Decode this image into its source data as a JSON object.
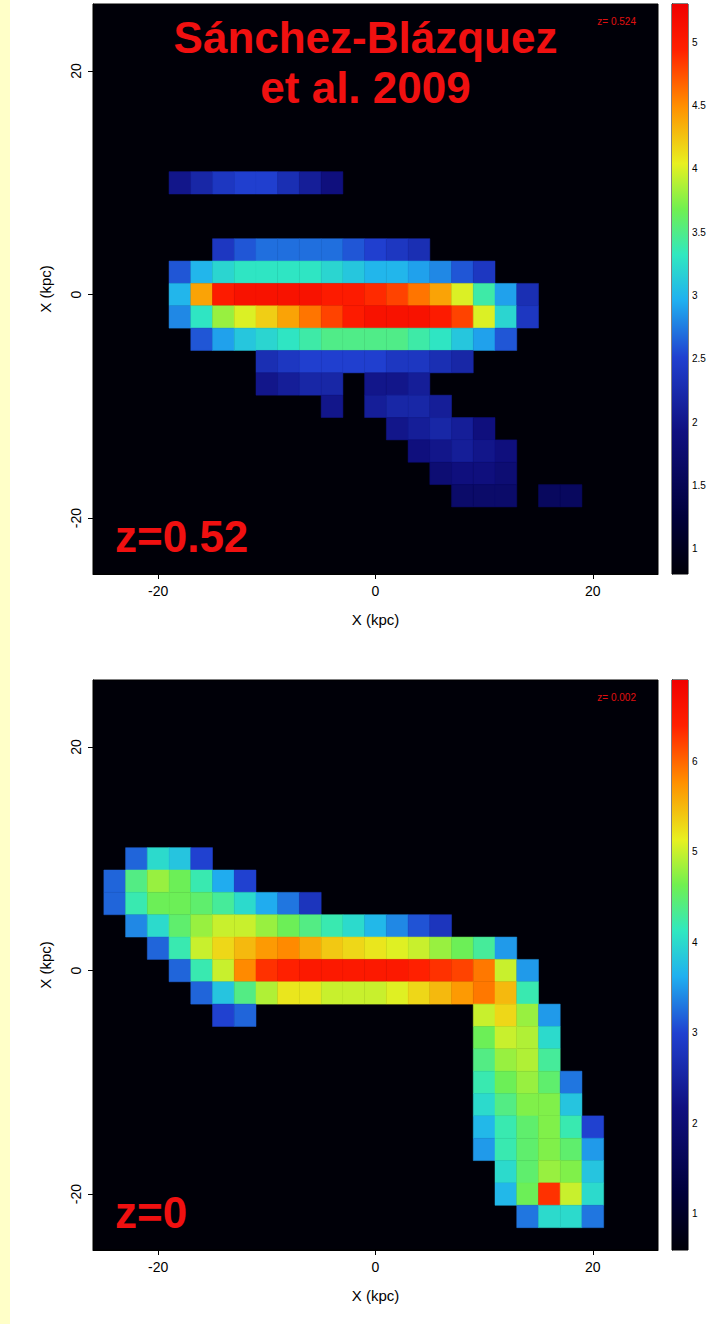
{
  "chart_data": [
    {
      "type": "heatmap",
      "xlabel": "X (kpc)",
      "ylabel": "X (kpc)",
      "xlim": [
        -26,
        26
      ],
      "ylim": [
        -25,
        26
      ],
      "xticks": [
        -20,
        0,
        20
      ],
      "yticks": [
        -20,
        0,
        20
      ],
      "grid": false,
      "cell_size": 2,
      "colorbar_range": [
        0.8,
        5.3
      ],
      "colorbar_ticks": [
        1,
        1.5,
        2,
        2.5,
        3,
        3.5,
        4,
        4.5,
        5
      ],
      "annotations": {
        "citation": "Sánchez-Blázquez\net al. 2009",
        "epoch": "z=0.52",
        "snapshot": "z= 0.524"
      },
      "cells": [
        [
          -18,
          10,
          2.0
        ],
        [
          -16,
          10,
          2.2
        ],
        [
          -14,
          10,
          2.4
        ],
        [
          -12,
          10,
          2.5
        ],
        [
          -10,
          10,
          2.5
        ],
        [
          -8,
          10,
          2.3
        ],
        [
          -6,
          10,
          2.1
        ],
        [
          -4,
          10,
          1.9
        ],
        [
          -14,
          4,
          2.4
        ],
        [
          -12,
          4,
          2.6
        ],
        [
          -10,
          4,
          2.7
        ],
        [
          -8,
          4,
          2.7
        ],
        [
          -6,
          4,
          2.7
        ],
        [
          -4,
          4,
          2.7
        ],
        [
          -2,
          4,
          2.6
        ],
        [
          0,
          4,
          2.5
        ],
        [
          2,
          4,
          2.4
        ],
        [
          4,
          4,
          2.3
        ],
        [
          -18,
          2,
          2.6
        ],
        [
          -16,
          2,
          3.0
        ],
        [
          -14,
          2,
          3.2
        ],
        [
          -12,
          2,
          3.3
        ],
        [
          -10,
          2,
          3.3
        ],
        [
          -8,
          2,
          3.3
        ],
        [
          -6,
          2,
          3.3
        ],
        [
          -4,
          2,
          3.2
        ],
        [
          -2,
          2,
          3.1
        ],
        [
          0,
          2,
          3.0
        ],
        [
          2,
          2,
          3.0
        ],
        [
          4,
          2,
          2.9
        ],
        [
          6,
          2,
          2.8
        ],
        [
          8,
          2,
          2.6
        ],
        [
          10,
          2,
          2.4
        ],
        [
          -18,
          0,
          3.0
        ],
        [
          -16,
          0,
          4.4
        ],
        [
          -14,
          0,
          5.0
        ],
        [
          -12,
          0,
          5.1
        ],
        [
          -10,
          0,
          5.1
        ],
        [
          -8,
          0,
          5.1
        ],
        [
          -6,
          0,
          5.1
        ],
        [
          -4,
          0,
          5.0
        ],
        [
          -2,
          0,
          5.0
        ],
        [
          0,
          0,
          4.9
        ],
        [
          2,
          0,
          4.8
        ],
        [
          4,
          0,
          4.6
        ],
        [
          6,
          0,
          4.4
        ],
        [
          8,
          0,
          4.0
        ],
        [
          10,
          0,
          3.4
        ],
        [
          12,
          0,
          2.9
        ],
        [
          14,
          0,
          2.3
        ],
        [
          -18,
          -2,
          2.8
        ],
        [
          -16,
          -2,
          3.3
        ],
        [
          -14,
          -2,
          3.8
        ],
        [
          -12,
          -2,
          4.0
        ],
        [
          -10,
          -2,
          4.2
        ],
        [
          -8,
          -2,
          4.4
        ],
        [
          -6,
          -2,
          4.6
        ],
        [
          -4,
          -2,
          4.8
        ],
        [
          -2,
          -2,
          5.0
        ],
        [
          0,
          -2,
          5.1
        ],
        [
          2,
          -2,
          5.1
        ],
        [
          4,
          -2,
          5.1
        ],
        [
          6,
          -2,
          5.0
        ],
        [
          8,
          -2,
          4.8
        ],
        [
          10,
          -2,
          4.0
        ],
        [
          12,
          -2,
          3.2
        ],
        [
          14,
          -2,
          2.4
        ],
        [
          -16,
          -4,
          2.6
        ],
        [
          -14,
          -4,
          2.9
        ],
        [
          -12,
          -4,
          3.1
        ],
        [
          -10,
          -4,
          3.2
        ],
        [
          -8,
          -4,
          3.3
        ],
        [
          -6,
          -4,
          3.4
        ],
        [
          -4,
          -4,
          3.5
        ],
        [
          -2,
          -4,
          3.5
        ],
        [
          0,
          -4,
          3.5
        ],
        [
          2,
          -4,
          3.5
        ],
        [
          4,
          -4,
          3.4
        ],
        [
          6,
          -4,
          3.3
        ],
        [
          8,
          -4,
          3.1
        ],
        [
          10,
          -4,
          2.9
        ],
        [
          12,
          -4,
          2.6
        ],
        [
          -10,
          -6,
          2.3
        ],
        [
          -8,
          -6,
          2.4
        ],
        [
          -6,
          -6,
          2.5
        ],
        [
          -4,
          -6,
          2.5
        ],
        [
          -2,
          -6,
          2.5
        ],
        [
          0,
          -6,
          2.5
        ],
        [
          2,
          -6,
          2.4
        ],
        [
          4,
          -6,
          2.4
        ],
        [
          6,
          -6,
          2.3
        ],
        [
          8,
          -6,
          2.2
        ],
        [
          -10,
          -8,
          2.0
        ],
        [
          -8,
          -8,
          2.1
        ],
        [
          -6,
          -8,
          2.2
        ],
        [
          -4,
          -8,
          2.2
        ],
        [
          0,
          -8,
          2.0
        ],
        [
          2,
          -8,
          2.0
        ],
        [
          4,
          -8,
          2.1
        ],
        [
          -4,
          -10,
          2.0
        ],
        [
          0,
          -10,
          2.1
        ],
        [
          2,
          -10,
          2.2
        ],
        [
          4,
          -10,
          2.2
        ],
        [
          6,
          -10,
          2.1
        ],
        [
          2,
          -12,
          2.0
        ],
        [
          4,
          -12,
          2.1
        ],
        [
          6,
          -12,
          2.2
        ],
        [
          8,
          -12,
          2.1
        ],
        [
          10,
          -12,
          1.9
        ],
        [
          4,
          -14,
          1.9
        ],
        [
          6,
          -14,
          2.0
        ],
        [
          8,
          -14,
          2.1
        ],
        [
          10,
          -14,
          2.0
        ],
        [
          12,
          -14,
          1.9
        ],
        [
          6,
          -16,
          1.8
        ],
        [
          8,
          -16,
          1.9
        ],
        [
          10,
          -16,
          1.9
        ],
        [
          12,
          -16,
          1.8
        ],
        [
          8,
          -18,
          1.7
        ],
        [
          10,
          -18,
          1.7
        ],
        [
          12,
          -18,
          1.7
        ],
        [
          16,
          -18,
          1.6
        ],
        [
          18,
          -18,
          1.6
        ]
      ]
    },
    {
      "type": "heatmap",
      "xlabel": "X (kpc)",
      "ylabel": "X (kpc)",
      "xlim": [
        -26,
        26
      ],
      "ylim": [
        -25,
        26
      ],
      "xticks": [
        -20,
        0,
        20
      ],
      "yticks": [
        -20,
        0,
        20
      ],
      "grid": false,
      "cell_size": 2,
      "colorbar_range": [
        0.6,
        6.9
      ],
      "colorbar_ticks": [
        1,
        2,
        3,
        4,
        5,
        6
      ],
      "annotations": {
        "epoch": "z=0",
        "snapshot": "z= 0.002"
      },
      "cells": [
        [
          -22,
          10,
          3.2
        ],
        [
          -20,
          10,
          4.0
        ],
        [
          -18,
          10,
          3.8
        ],
        [
          -16,
          10,
          3.0
        ],
        [
          -24,
          8,
          3.2
        ],
        [
          -22,
          8,
          4.4
        ],
        [
          -20,
          8,
          4.8
        ],
        [
          -18,
          8,
          4.6
        ],
        [
          -16,
          8,
          4.2
        ],
        [
          -14,
          8,
          3.6
        ],
        [
          -12,
          8,
          3.0
        ],
        [
          -24,
          6,
          3.2
        ],
        [
          -22,
          6,
          4.2
        ],
        [
          -20,
          6,
          4.6
        ],
        [
          -18,
          6,
          4.6
        ],
        [
          -16,
          6,
          4.5
        ],
        [
          -14,
          6,
          4.3
        ],
        [
          -12,
          6,
          4.0
        ],
        [
          -10,
          6,
          3.6
        ],
        [
          -8,
          6,
          3.3
        ],
        [
          -6,
          6,
          2.8
        ],
        [
          -22,
          4,
          3.4
        ],
        [
          -20,
          4,
          4.0
        ],
        [
          -18,
          4,
          4.5
        ],
        [
          -16,
          4,
          4.8
        ],
        [
          -14,
          4,
          5.0
        ],
        [
          -12,
          4,
          5.0
        ],
        [
          -10,
          4,
          4.8
        ],
        [
          -8,
          4,
          4.6
        ],
        [
          -6,
          4,
          4.4
        ],
        [
          -4,
          4,
          4.2
        ],
        [
          -2,
          4,
          4.0
        ],
        [
          0,
          4,
          3.7
        ],
        [
          2,
          4,
          3.4
        ],
        [
          4,
          4,
          3.1
        ],
        [
          6,
          4,
          2.8
        ],
        [
          -20,
          2,
          3.2
        ],
        [
          -18,
          2,
          4.2
        ],
        [
          -16,
          2,
          5.0
        ],
        [
          -14,
          2,
          5.3
        ],
        [
          -12,
          2,
          5.5
        ],
        [
          -10,
          2,
          5.7
        ],
        [
          -8,
          2,
          5.8
        ],
        [
          -6,
          2,
          5.6
        ],
        [
          -4,
          2,
          5.4
        ],
        [
          -2,
          2,
          5.3
        ],
        [
          0,
          2,
          5.2
        ],
        [
          2,
          2,
          5.1
        ],
        [
          4,
          2,
          5.0
        ],
        [
          6,
          2,
          4.8
        ],
        [
          8,
          2,
          4.6
        ],
        [
          10,
          2,
          4.3
        ],
        [
          12,
          2,
          3.5
        ],
        [
          -18,
          0,
          3.2
        ],
        [
          -16,
          0,
          4.2
        ],
        [
          -14,
          0,
          5.0
        ],
        [
          -12,
          0,
          5.8
        ],
        [
          -10,
          0,
          6.3
        ],
        [
          -8,
          0,
          6.4
        ],
        [
          -6,
          0,
          6.5
        ],
        [
          -4,
          0,
          6.5
        ],
        [
          -2,
          0,
          6.5
        ],
        [
          0,
          0,
          6.5
        ],
        [
          2,
          0,
          6.5
        ],
        [
          4,
          0,
          6.4
        ],
        [
          6,
          0,
          6.3
        ],
        [
          8,
          0,
          6.2
        ],
        [
          10,
          0,
          5.9
        ],
        [
          12,
          0,
          5.0
        ],
        [
          14,
          0,
          3.5
        ],
        [
          -16,
          -2,
          3.2
        ],
        [
          -14,
          -2,
          3.8
        ],
        [
          -12,
          -2,
          4.4
        ],
        [
          -10,
          -2,
          4.9
        ],
        [
          -8,
          -2,
          5.2
        ],
        [
          -6,
          -2,
          5.2
        ],
        [
          -4,
          -2,
          5.0
        ],
        [
          -2,
          -2,
          5.0
        ],
        [
          0,
          -2,
          5.0
        ],
        [
          2,
          -2,
          5.1
        ],
        [
          4,
          -2,
          5.3
        ],
        [
          6,
          -2,
          5.5
        ],
        [
          8,
          -2,
          5.7
        ],
        [
          10,
          -2,
          5.9
        ],
        [
          12,
          -2,
          5.5
        ],
        [
          14,
          -2,
          4.2
        ],
        [
          -14,
          -4,
          3.0
        ],
        [
          -12,
          -4,
          3.2
        ],
        [
          10,
          -4,
          5.0
        ],
        [
          12,
          -4,
          5.3
        ],
        [
          14,
          -4,
          4.8
        ],
        [
          16,
          -4,
          3.5
        ],
        [
          10,
          -6,
          4.6
        ],
        [
          12,
          -6,
          5.0
        ],
        [
          14,
          -6,
          4.9
        ],
        [
          16,
          -6,
          4.0
        ],
        [
          10,
          -8,
          4.4
        ],
        [
          12,
          -8,
          4.8
        ],
        [
          14,
          -8,
          4.9
        ],
        [
          16,
          -8,
          4.3
        ],
        [
          10,
          -10,
          4.2
        ],
        [
          12,
          -10,
          4.6
        ],
        [
          14,
          -10,
          4.8
        ],
        [
          16,
          -10,
          4.5
        ],
        [
          18,
          -10,
          3.3
        ],
        [
          10,
          -12,
          4.0
        ],
        [
          12,
          -12,
          4.4
        ],
        [
          14,
          -12,
          4.7
        ],
        [
          16,
          -12,
          4.7
        ],
        [
          18,
          -12,
          3.8
        ],
        [
          10,
          -14,
          3.7
        ],
        [
          12,
          -14,
          4.2
        ],
        [
          14,
          -14,
          4.5
        ],
        [
          16,
          -14,
          4.7
        ],
        [
          18,
          -14,
          4.2
        ],
        [
          20,
          -14,
          3.0
        ],
        [
          10,
          -16,
          3.5
        ],
        [
          12,
          -16,
          4.2
        ],
        [
          14,
          -16,
          4.5
        ],
        [
          16,
          -16,
          4.7
        ],
        [
          18,
          -16,
          4.5
        ],
        [
          20,
          -16,
          3.5
        ],
        [
          12,
          -18,
          4.0
        ],
        [
          14,
          -18,
          4.5
        ],
        [
          16,
          -18,
          4.8
        ],
        [
          18,
          -18,
          4.7
        ],
        [
          20,
          -18,
          3.8
        ],
        [
          12,
          -20,
          3.7
        ],
        [
          14,
          -20,
          4.6
        ],
        [
          16,
          -20,
          6.3
        ],
        [
          18,
          -20,
          5.0
        ],
        [
          20,
          -20,
          4.0
        ],
        [
          14,
          -22,
          3.3
        ],
        [
          16,
          -22,
          4.0
        ],
        [
          18,
          -22,
          4.0
        ],
        [
          20,
          -22,
          3.3
        ]
      ]
    }
  ]
}
